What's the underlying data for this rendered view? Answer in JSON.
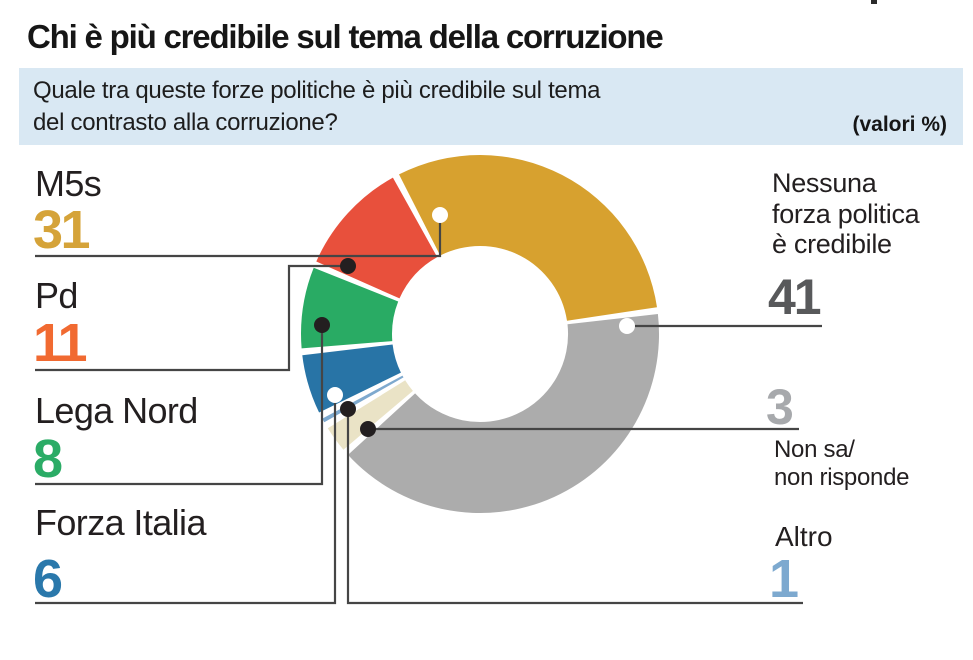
{
  "header": {
    "title": "Chi è più credibile sul tema della corruzione",
    "question": {
      "line1": "Quale tra queste forze politiche è più credibile sul tema",
      "line2": "del contrasto alla corruzione?",
      "note": "(valori %)",
      "bg_color": "#d9e8f3"
    }
  },
  "chart_data": {
    "type": "pie",
    "variant": "donut",
    "title": "Chi è più credibile sul tema della corruzione",
    "unit": "valori %",
    "start_angle_deg": -28,
    "clockwise": true,
    "total": 101,
    "legend_position": "callouts",
    "series": [
      {
        "id": "m5s",
        "label": "M5s",
        "value": 31,
        "color": "#d7a12f"
      },
      {
        "id": "nessuna",
        "label": "Nessuna forza politica è credibile",
        "value": 41,
        "color": "#acacac"
      },
      {
        "id": "non-sa",
        "label": "Non sa/non risponde",
        "value": 3,
        "color": "#eae3c6"
      },
      {
        "id": "altro",
        "label": "Altro",
        "value": 1,
        "color": "#7ea9ce"
      },
      {
        "id": "forza-italia",
        "label": "Forza Italia",
        "value": 6,
        "color": "#2874a6"
      },
      {
        "id": "lega-nord",
        "label": "Lega Nord",
        "value": 8,
        "color": "#29ab64"
      },
      {
        "id": "pd",
        "label": "Pd",
        "value": 11,
        "color": "#e8503c"
      }
    ]
  },
  "callouts": {
    "m5s": {
      "name": "M5s",
      "value": 31,
      "value_color": "#d5a339"
    },
    "pd": {
      "name": "Pd",
      "value": 11,
      "value_color": "#f16a31"
    },
    "lega": {
      "name": "Lega Nord",
      "value": 8,
      "value_color": "#2bac66"
    },
    "forza": {
      "name": "Forza Italia",
      "value": 6,
      "value_color": "#2a78ab"
    },
    "nessuna": {
      "line1": "Nessuna",
      "line2": "forza politica",
      "line3": "è credibile",
      "value": 41,
      "value_color": "#58595b"
    },
    "nonsa": {
      "value": 3,
      "line1": "Non sa/",
      "line2": "non risponde",
      "value_color": "#a7a9ac"
    },
    "altro": {
      "name": "Altro",
      "value": 1,
      "value_color": "#7da9cf"
    }
  }
}
